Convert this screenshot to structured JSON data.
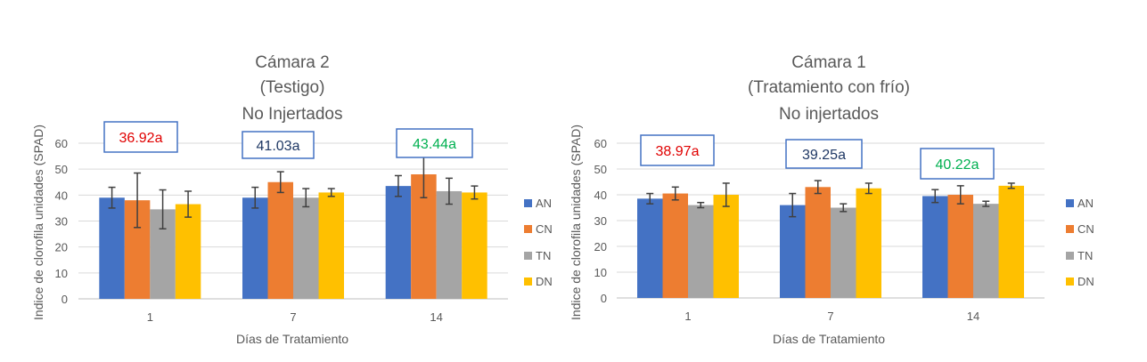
{
  "colors": {
    "AN": "#4472C4",
    "CN": "#ED7D31",
    "TN": "#A5A5A5",
    "DN": "#FFC000",
    "grid": "#D9D9D9",
    "axis_text": "#595959",
    "error_bar": "#404040",
    "box_border": "#4472C4",
    "label_red": "#E00000",
    "label_navy": "#1F3864",
    "label_green": "#00B050"
  },
  "chart_data": [
    {
      "type": "bar",
      "title_lines": [
        "Cámara 2",
        "(Testigo)",
        "No Injertados"
      ],
      "xlabel": "Días de Tratamiento",
      "ylabel": "Indice de clorofila unidades (SPAD)",
      "ylim": [
        0,
        60
      ],
      "yticks": [
        "0",
        "10",
        "20",
        "30",
        "40",
        "50",
        "60"
      ],
      "grid": true,
      "legend_position": "right",
      "categories": [
        "1",
        "7",
        "14"
      ],
      "series": [
        {
          "name": "AN",
          "values": [
            39,
            39,
            43.5
          ],
          "errors": [
            4,
            4,
            4
          ]
        },
        {
          "name": "CN",
          "values": [
            38,
            45,
            48
          ],
          "errors": [
            10.5,
            4,
            9
          ]
        },
        {
          "name": "TN",
          "values": [
            34.5,
            39,
            41.5
          ],
          "errors": [
            7.5,
            3.5,
            5
          ]
        },
        {
          "name": "DN",
          "values": [
            36.5,
            41,
            41
          ],
          "errors": [
            5,
            1.5,
            2.5
          ]
        }
      ],
      "annotations": [
        {
          "text": "36.92a",
          "color_key": "label_red"
        },
        {
          "text": "41.03a",
          "color_key": "label_navy"
        },
        {
          "text": "43.44a",
          "color_key": "label_green"
        }
      ]
    },
    {
      "type": "bar",
      "title_lines": [
        "Cámara 1",
        "(Tratamiento con frío)",
        "No injertados"
      ],
      "xlabel": "Días de Tratamiento",
      "ylabel": "Indice de clorofila unidades (SPAD)",
      "ylim": [
        0,
        60
      ],
      "yticks": [
        "0",
        "10",
        "20",
        "30",
        "40",
        "50",
        "60"
      ],
      "grid": true,
      "legend_position": "right",
      "categories": [
        "1",
        "7",
        "14"
      ],
      "series": [
        {
          "name": "AN",
          "values": [
            38.5,
            36,
            39.5
          ],
          "errors": [
            2,
            4.5,
            2.5
          ]
        },
        {
          "name": "CN",
          "values": [
            40.5,
            43,
            40
          ],
          "errors": [
            2.5,
            2.5,
            3.5
          ]
        },
        {
          "name": "TN",
          "values": [
            36,
            35,
            36.5
          ],
          "errors": [
            1,
            1.5,
            1
          ]
        },
        {
          "name": "DN",
          "values": [
            40,
            42.5,
            43.5
          ],
          "errors": [
            4.5,
            2,
            1
          ]
        }
      ],
      "annotations": [
        {
          "text": "38.97a",
          "color_key": "label_red"
        },
        {
          "text": "39.25a",
          "color_key": "label_navy"
        },
        {
          "text": "40.22a",
          "color_key": "label_green"
        }
      ]
    }
  ]
}
